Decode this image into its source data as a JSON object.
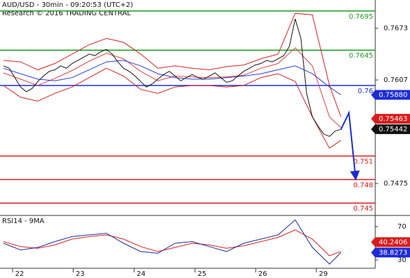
{
  "chart_data": [
    {
      "type": "line",
      "title": "AUD/USD - 30min - 09:20:53 (UTC+2)",
      "subtitle": "Research © 2016 TRADING CENTRAL",
      "xlim": [
        -0.6,
        65
      ],
      "ylim": [
        0.7436,
        0.7709
      ],
      "yticks": [
        0.7673,
        0.7607,
        0.7475
      ],
      "levels": [
        {
          "value": 0.7695,
          "color": "#1f9a1f"
        },
        {
          "value": 0.7645,
          "color": "#1f9a1f"
        },
        {
          "value": 0.76,
          "color": "#1c2bd6"
        },
        {
          "value": 0.751,
          "color": "#d91c1c"
        },
        {
          "value": 0.748,
          "color": "#d91c1c"
        },
        {
          "value": 0.745,
          "color": "#d91c1c"
        }
      ],
      "series": [
        {
          "color": "#d42020",
          "x": [
            0,
            3,
            6,
            9,
            12,
            15,
            18,
            21,
            24,
            27,
            30,
            33,
            36,
            39,
            42,
            45,
            48,
            51,
            54,
            57,
            59
          ],
          "values": [
            0.7632,
            0.763,
            0.762,
            0.7628,
            0.764,
            0.7652,
            0.766,
            0.7655,
            0.764,
            0.7622,
            0.7625,
            0.7622,
            0.762,
            0.7624,
            0.7626,
            0.7634,
            0.764,
            0.7692,
            0.769,
            0.76,
            0.756
          ]
        },
        {
          "color": "#d42020",
          "x": [
            0,
            3,
            6,
            9,
            12,
            15,
            18,
            21,
            24,
            27,
            30,
            33,
            36,
            39,
            42,
            45,
            48,
            51,
            54,
            57,
            59
          ],
          "values": [
            0.76,
            0.7585,
            0.758,
            0.759,
            0.7598,
            0.761,
            0.7622,
            0.7612,
            0.7595,
            0.759,
            0.7598,
            0.76,
            0.76,
            0.7598,
            0.76,
            0.761,
            0.7615,
            0.7605,
            0.756,
            0.752,
            0.753
          ]
        },
        {
          "color": "#e04040",
          "x": [
            0,
            3,
            6,
            9,
            12,
            15,
            18,
            21,
            24,
            27,
            30,
            33,
            36,
            39,
            42,
            45,
            48,
            51,
            54,
            57,
            59
          ],
          "values": [
            0.7616,
            0.7608,
            0.76,
            0.7609,
            0.7619,
            0.7631,
            0.7641,
            0.7634,
            0.7618,
            0.7606,
            0.7612,
            0.7611,
            0.761,
            0.7611,
            0.7613,
            0.7622,
            0.7628,
            0.7648,
            0.7625,
            0.756,
            0.75463
          ]
        },
        {
          "color": "#2a3bd0",
          "x": [
            0,
            3,
            6,
            9,
            12,
            15,
            18,
            21,
            24,
            27,
            30,
            33,
            36,
            39,
            42,
            45,
            48,
            51,
            54,
            57,
            59
          ],
          "values": [
            0.7622,
            0.7615,
            0.7608,
            0.7606,
            0.761,
            0.762,
            0.763,
            0.7632,
            0.7625,
            0.7615,
            0.761,
            0.7608,
            0.7608,
            0.761,
            0.7612,
            0.7615,
            0.762,
            0.7625,
            0.7615,
            0.7598,
            0.7588
          ]
        },
        {
          "color": "#111111",
          "x": [
            0,
            1,
            2,
            3,
            4,
            5,
            6,
            7,
            8,
            9,
            10,
            11,
            12,
            13,
            14,
            15,
            16,
            17,
            18,
            19,
            20,
            21,
            22,
            23,
            24,
            25,
            26,
            27,
            28,
            29,
            30,
            31,
            32,
            33,
            34,
            35,
            36,
            37,
            38,
            39,
            40,
            41,
            42,
            43,
            44,
            45,
            46,
            47,
            48,
            49,
            50,
            51,
            52,
            53,
            54,
            55,
            56,
            57,
            58,
            59
          ],
          "values": [
            0.7625,
            0.7622,
            0.761,
            0.7598,
            0.7592,
            0.7596,
            0.7605,
            0.7612,
            0.7618,
            0.762,
            0.7625,
            0.7622,
            0.7628,
            0.7632,
            0.7636,
            0.764,
            0.7638,
            0.7643,
            0.7646,
            0.764,
            0.763,
            0.7622,
            0.7618,
            0.7612,
            0.7605,
            0.7598,
            0.7602,
            0.7608,
            0.7614,
            0.7618,
            0.7612,
            0.7606,
            0.761,
            0.7614,
            0.761,
            0.7608,
            0.7612,
            0.7616,
            0.761,
            0.7604,
            0.7606,
            0.7612,
            0.7618,
            0.7622,
            0.7626,
            0.7628,
            0.7632,
            0.763,
            0.7634,
            0.7638,
            0.765,
            0.7685,
            0.766,
            0.759,
            0.756,
            0.7548,
            0.7538,
            0.7535,
            0.7542,
            0.7544
          ]
        },
        {
          "color": "#1c2bd6",
          "x": [
            59,
            60.4,
            61.6
          ],
          "values": [
            0.7544,
            0.7565,
            0.748
          ],
          "arrow": true
        }
      ],
      "tags": [
        {
          "value": 0.7588,
          "label": "0.75880",
          "color": "#1c2bd6"
        },
        {
          "value": 0.75463,
          "label": "0.75463",
          "color": "#d91c1c"
        },
        {
          "value": 0.75442,
          "label": "0.75442",
          "color": "#111111"
        }
      ]
    },
    {
      "type": "line",
      "title": "RSI14 - 9MA",
      "xlim": [
        -0.6,
        65
      ],
      "ylim": [
        20,
        81.7
      ],
      "yticks": [
        70,
        30
      ],
      "xticks": [
        {
          "value": 1.6,
          "label": "22"
        },
        {
          "value": 12.2,
          "label": "23"
        },
        {
          "value": 22.85,
          "label": "24"
        },
        {
          "value": 33.5,
          "label": "25"
        },
        {
          "value": 44.1,
          "label": "26"
        },
        {
          "value": 54.7,
          "label": "29"
        }
      ],
      "series": [
        {
          "color": "#d42020",
          "x": [
            0,
            3,
            6,
            9,
            12,
            15,
            18,
            21,
            24,
            27,
            30,
            33,
            36,
            39,
            42,
            45,
            48,
            51,
            54,
            57,
            59
          ],
          "values": [
            52,
            46,
            44,
            48,
            55,
            58,
            60,
            55,
            46,
            40,
            45,
            50,
            48,
            44,
            47,
            52,
            57,
            66,
            55,
            35,
            40.2406
          ]
        },
        {
          "color": "#1a2a9a",
          "x": [
            0,
            3,
            6,
            9,
            12,
            15,
            18,
            21,
            24,
            27,
            30,
            33,
            36,
            39,
            42,
            45,
            48,
            51,
            54,
            57,
            59
          ],
          "values": [
            50,
            42,
            45,
            52,
            58,
            60,
            62,
            50,
            40,
            38,
            50,
            52,
            46,
            40,
            50,
            55,
            60,
            78,
            45,
            25,
            38.8273
          ]
        }
      ],
      "tags": [
        {
          "value": 40.2406,
          "color": "#d91c1c"
        },
        {
          "value": 38.8273,
          "color": "#1c2bd6"
        }
      ]
    }
  ]
}
